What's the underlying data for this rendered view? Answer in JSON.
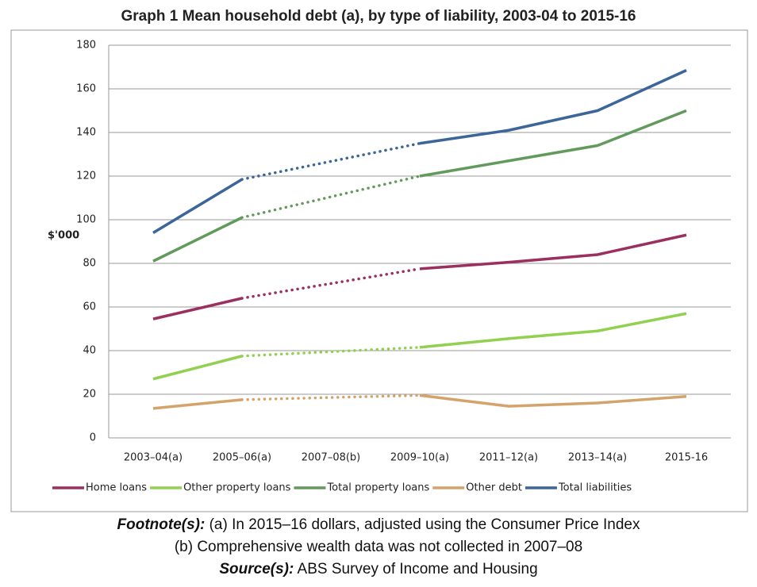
{
  "chart_data": {
    "type": "line",
    "title": "Graph 1 Mean household debt (a), by type of liability, 2003-04 to 2015-16",
    "y_label": "$'000",
    "categories": [
      "2003–04(a)",
      "2005–06(a)",
      "2007–08(b)",
      "2009–10(a)",
      "2011–12(a)",
      "2013–14(a)",
      "2015-16"
    ],
    "series": [
      {
        "name": "Home loans",
        "color": "#9b2f5f",
        "values": [
          54.5,
          64,
          null,
          77.5,
          80.5,
          84,
          93
        ]
      },
      {
        "name": "Other property loans",
        "color": "#92d050",
        "values": [
          27,
          37.5,
          null,
          41.5,
          45.5,
          49,
          57
        ]
      },
      {
        "name": "Total property loans",
        "color": "#629a5c",
        "values": [
          81,
          101,
          null,
          120,
          127,
          134,
          150
        ]
      },
      {
        "name": "Other debt",
        "color": "#d4a36c",
        "values": [
          13.5,
          17.5,
          null,
          19.5,
          14.5,
          16,
          19
        ]
      },
      {
        "name": "Total liabilities",
        "color": "#3c6599",
        "values": [
          94,
          118.5,
          null,
          135,
          141,
          150,
          168.5
        ]
      }
    ],
    "ylim": [
      0,
      180
    ],
    "yticks": [
      0,
      20,
      40,
      60,
      80,
      100,
      120,
      140,
      160,
      180
    ],
    "grid": true,
    "legend": "bottom"
  },
  "footnotes": {
    "label": "Footnote(s):",
    "lines": [
      "(a) In 2015–16 dollars, adjusted using the Consumer Price Index",
      "(b) Comprehensive wealth data was not collected in 2007–08"
    ]
  },
  "source": {
    "label": "Source(s):",
    "text": "ABS Survey of Income and Housing"
  }
}
